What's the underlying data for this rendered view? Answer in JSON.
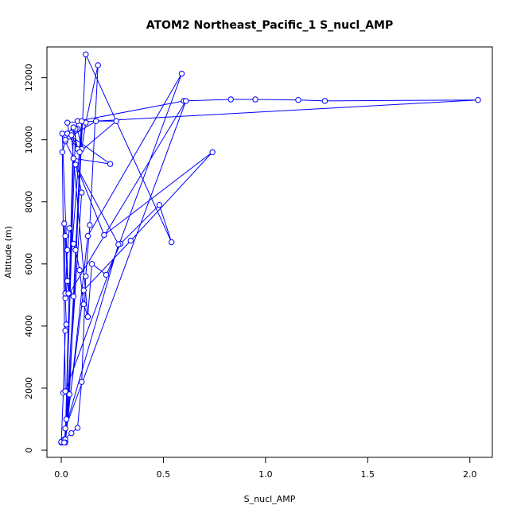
{
  "chart_data": {
    "type": "line",
    "title": "ATOM2 Northeast_Pacific_1 S_nucl_AMP",
    "xlabel": "S_nucl_AMP",
    "ylabel": "Altitude (m)",
    "xlim": [
      -0.07,
      2.11
    ],
    "ylim": [
      -230,
      12990
    ],
    "xticks": [
      0.0,
      0.5,
      1.0,
      1.5,
      2.0
    ],
    "xtick_labels": [
      "0.0",
      "0.5",
      "1.0",
      "1.5",
      "2.0"
    ],
    "yticks": [
      0,
      2000,
      4000,
      6000,
      8000,
      10000,
      12000
    ],
    "ytick_labels": [
      "0",
      "2000",
      "4000",
      "6000",
      "8000",
      "10000",
      "12000"
    ],
    "grid": false,
    "line_color": "#0000ff",
    "marker": "open-circle",
    "series": [
      {
        "x": [
          0.0,
          0.01,
          0.02,
          0.025,
          0.02,
          0.03,
          0.02,
          0.015,
          0.02,
          0.03,
          0.04,
          0.06,
          0.07,
          0.09,
          0.11,
          0.13,
          0.15,
          0.22,
          0.29,
          0.48,
          0.54,
          0.12,
          0.04,
          0.02,
          0.01,
          0.0,
          0.015,
          0.05,
          0.08,
          0.1,
          0.12,
          0.14,
          0.18,
          0.12,
          0.1,
          0.08,
          0.06,
          0.02,
          0.07,
          0.08,
          0.6,
          0.83,
          0.95,
          1.16,
          1.29,
          2.04,
          0.03,
          0.04,
          0.08,
          0.06,
          0.03,
          0.24,
          0.06,
          0.02,
          0.005,
          0.02,
          0.59,
          0.13,
          0.02,
          0.1,
          0.07,
          0.28,
          0.02,
          0.61,
          0.04,
          0.06,
          0.21,
          0.74,
          0.34,
          0.11,
          0.015,
          0.025,
          0.06,
          0.1,
          0.035,
          0.005,
          0.02,
          0.17,
          0.27,
          0.09,
          0.05,
          0.13
        ],
        "y": [
          250,
          1850,
          3850,
          4050,
          4900,
          5450,
          6900,
          7300,
          5050,
          6450,
          7150,
          6650,
          6450,
          5800,
          4700,
          4300,
          6000,
          5650,
          6650,
          7900,
          6700,
          12750,
          1800,
          250,
          300,
          270,
          350,
          550,
          720,
          2200,
          5600,
          7250,
          12400,
          10550,
          9700,
          10350,
          10350,
          350,
          10350,
          10600,
          11250,
          11300,
          11300,
          11280,
          11250,
          11280,
          10550,
          10100,
          9700,
          10400,
          10200,
          9220,
          9400,
          9950,
          9600,
          1900,
          12130,
          6900,
          250,
          8300,
          9200,
          6630,
          700,
          11250,
          5050,
          9400,
          6930,
          9600,
          6750,
          5150,
          250,
          1000,
          4950,
          10600,
          5050,
          10200,
          10000,
          10600,
          10600,
          9600,
          10150,
          4300
        ]
      }
    ]
  }
}
